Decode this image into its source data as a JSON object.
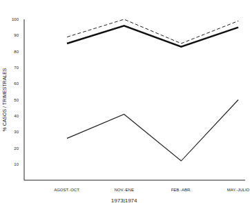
{
  "chart_data": {
    "type": "line",
    "y_label": "% CASOS / TRIMESTRALES",
    "categories": [
      "AGOST.-OCT.",
      "NOV.-ENE",
      "FEB.-ABR.",
      "MAY.-JULIO"
    ],
    "series": [
      {
        "color": "#222222",
        "line_style": "dashed",
        "values": [
          89,
          100,
          85,
          99
        ]
      },
      {
        "color": "#111111",
        "line_style": "solid",
        "values": [
          85,
          96,
          83,
          95
        ]
      },
      {
        "color": "#222222",
        "line_style": "solid",
        "values": [
          26,
          41,
          12,
          50
        ]
      }
    ],
    "ylim": [
      0,
      100
    ],
    "yticks": [
      10,
      20,
      30,
      40,
      50,
      60,
      70,
      80,
      90,
      100
    ],
    "grid": false,
    "annotations": [
      {
        "text": "1973|1974",
        "x": "NOV.-ENE"
      }
    ]
  }
}
